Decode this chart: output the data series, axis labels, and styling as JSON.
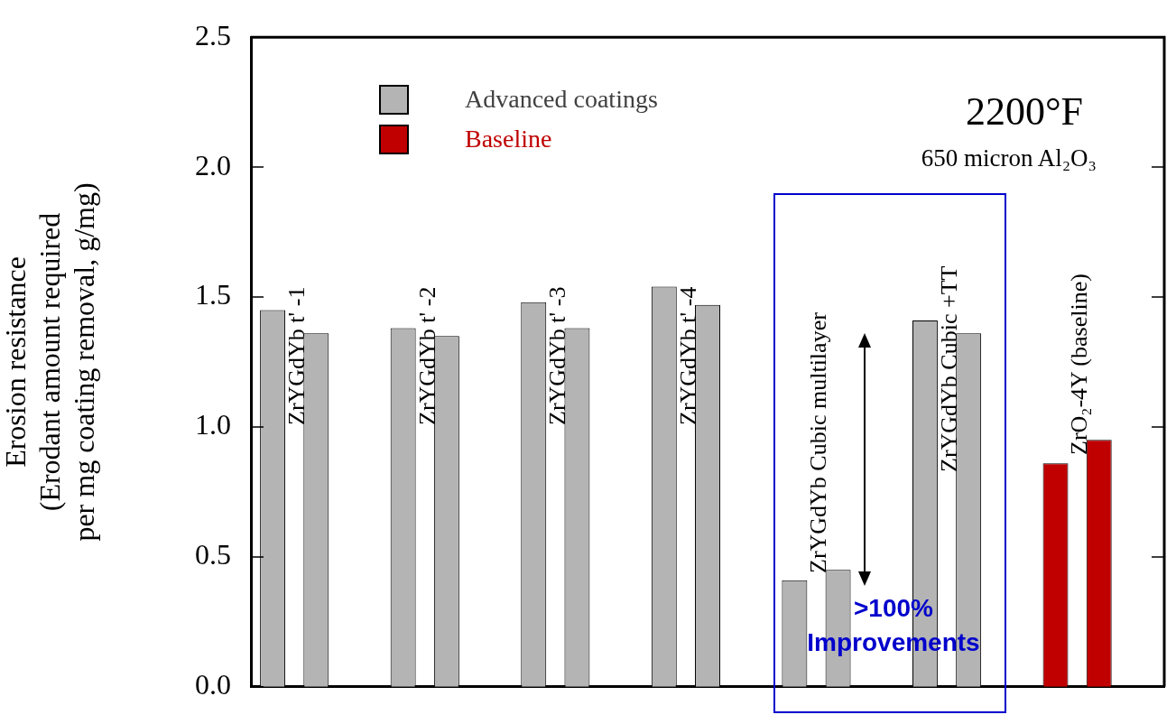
{
  "chart_data": {
    "type": "bar",
    "ylabel": "Erosion resistance\n(Erodant amount required\nper mg coating removal, g/mg)",
    "categories": [
      null,
      null,
      null,
      null,
      null,
      null,
      null,
      null,
      null,
      null,
      null,
      null,
      null,
      null,
      null,
      null,
      null,
      null,
      null,
      null,
      null
    ],
    "series": [
      {
        "name": "Advanced coatings",
        "color": "#b4b4b4",
        "values": [
          1.45,
          1.36,
          null,
          1.38,
          1.35,
          null,
          1.48,
          1.38,
          null,
          1.54,
          1.47,
          null,
          0.41,
          0.45,
          null,
          1.41,
          1.36,
          null,
          null,
          null,
          null
        ]
      },
      {
        "name": "Baseline",
        "color": "#c00000",
        "values": [
          null,
          null,
          null,
          null,
          null,
          null,
          null,
          null,
          null,
          null,
          null,
          null,
          null,
          null,
          null,
          null,
          null,
          null,
          0.86,
          0.95,
          null
        ]
      }
    ],
    "ylim": [
      0,
      2.5
    ],
    "yticks": [
      {
        "value": 0,
        "label": "0.0"
      },
      {
        "value": 0.5,
        "label": "0.5"
      },
      {
        "value": 1,
        "label": "1.0"
      },
      {
        "value": 1.5,
        "label": "1.5"
      },
      {
        "value": 2,
        "label": "2.0"
      },
      {
        "value": 2.5,
        "label": "2.5"
      }
    ],
    "grid": false,
    "legend": "top left",
    "annotations": [
      "ZrYGdYb t' -1",
      "ZrYGdYb t' -2",
      "ZrYGdYb t' -3",
      "ZrYGdYb t' -4",
      "ZrYGdYb Cubic multilayer",
      "ZrYGdYb Cubic +TT",
      "ZrO₂-4Y (baseline)",
      "2200°F",
      "650 micron Al₂O₃",
      ">100% Improvements"
    ]
  }
}
